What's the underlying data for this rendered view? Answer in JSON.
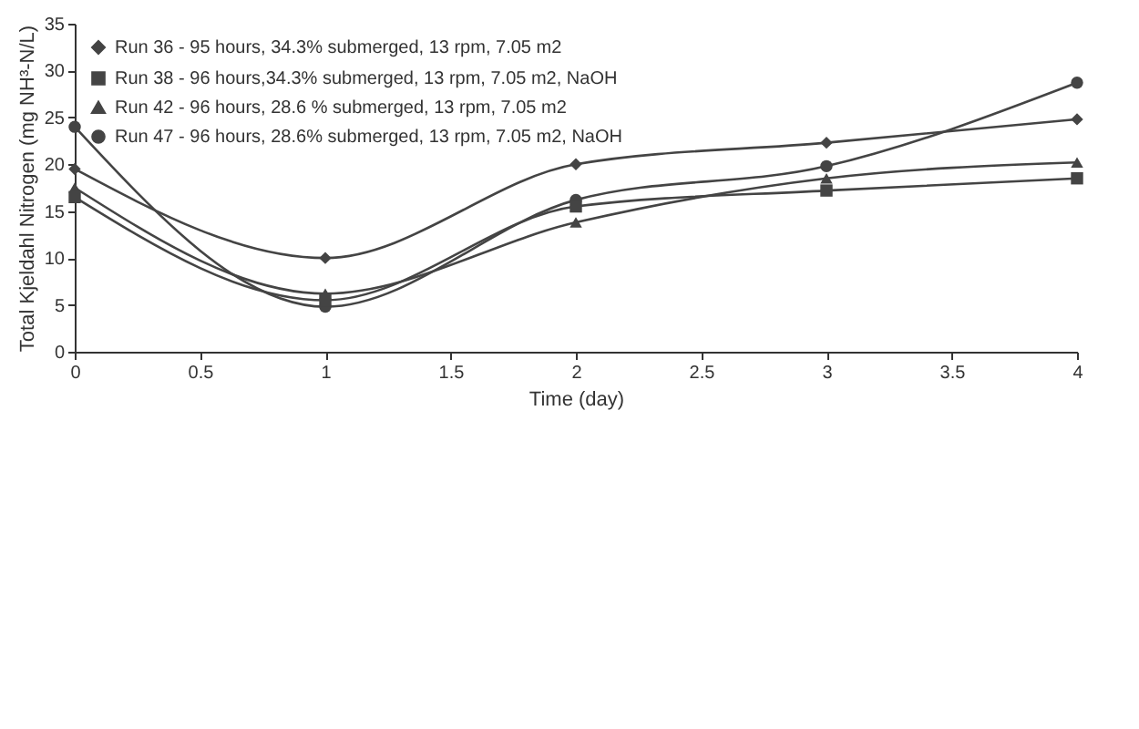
{
  "chart_data": {
    "type": "line",
    "xlabel": "Time (day)",
    "ylabel": "Total Kjeldahl Nitrogen (mg NH³-N/L)",
    "x": [
      0,
      1,
      2,
      3,
      4
    ],
    "xlim": [
      0,
      4
    ],
    "xticks": [
      0,
      0.5,
      1,
      1.5,
      2,
      2.5,
      3,
      3.5,
      4
    ],
    "ylim": [
      0,
      35
    ],
    "yticks": [
      0,
      5,
      10,
      15,
      20,
      25,
      30,
      35
    ],
    "grid": false,
    "legend": "top left",
    "series": [
      {
        "name": "Run 36 - 95 hours, 34.3% submerged, 13 rpm, 7.05 m2",
        "color": "#444444",
        "marker": "diamond",
        "values": [
          19.5,
          10,
          20,
          22.3,
          24.8
        ]
      },
      {
        "name": "Run 38 - 96 hours,34.3% submerged, 13 rpm, 7.05 m2, NaOH",
        "color": "#444444",
        "marker": "square",
        "values": [
          16.5,
          5.5,
          15.5,
          17.2,
          18.5
        ]
      },
      {
        "name": "Run 42 - 96 hours, 28.6 % submerged, 13 rpm, 7.05 m2",
        "color": "#444444",
        "marker": "triangle",
        "values": [
          17.5,
          6.2,
          13.8,
          18.5,
          20.2
        ]
      },
      {
        "name": "Run 47 - 96 hours, 28.6% submerged, 13 rpm, 7.05 m2, NaOH",
        "color": "#444444",
        "marker": "circle",
        "values": [
          24,
          4.8,
          16.2,
          19.8,
          28.7
        ]
      }
    ]
  }
}
